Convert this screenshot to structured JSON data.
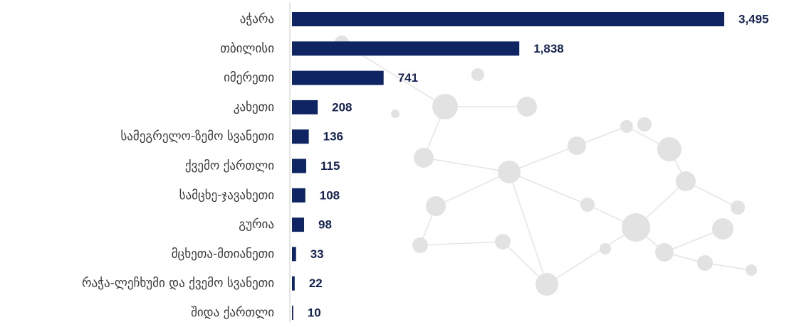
{
  "chart_data": {
    "type": "bar",
    "orientation": "horizontal",
    "color": "#0f2462",
    "categories": [
      "აჭარა",
      "თბილისი",
      "იმერეთი",
      "კახეთი",
      "სამეგრელო-ზემო სვანეთი",
      "ქვემო ქართლი",
      "სამცხე-ჯავახეთი",
      "გურია",
      "მცხეთა-მთიანეთი",
      "რაჭა-ლეჩხუმი და ქვემო სვანეთი",
      "შიდა ქართლი"
    ],
    "values": [
      3495,
      1838,
      741,
      208,
      136,
      115,
      108,
      98,
      33,
      22,
      10
    ],
    "value_labels": [
      "3,495",
      "1,838",
      "741",
      "208",
      "136",
      "115",
      "108",
      "98",
      "33",
      "22",
      "10"
    ]
  }
}
